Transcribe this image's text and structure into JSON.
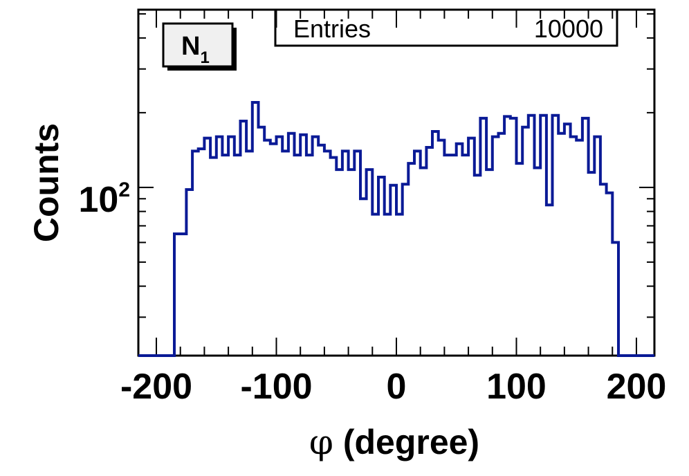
{
  "chart_data": {
    "type": "histogram",
    "label_box": {
      "text": "N",
      "subscript": "1"
    },
    "stats": {
      "entries_label": "Entries",
      "entries_value": "10000"
    },
    "xlabel_symbol": "φ",
    "xlabel_text": " (degree)",
    "ylabel": "Counts",
    "x_ticks": [
      "-200",
      "-100",
      "0",
      "100",
      "200"
    ],
    "x_tick_values": [
      -200,
      -100,
      0,
      100,
      200
    ],
    "y_tick_base": "10",
    "y_tick_exp": "2",
    "y_tick_value": 100,
    "xlim": [
      -215,
      215
    ],
    "ylim": [
      21,
      520
    ],
    "y_scale": "log",
    "line_color": "#0a1a96",
    "bin_edges": [
      -215,
      -205,
      -195,
      -185,
      -175,
      -170,
      -165,
      -160,
      -155,
      -150,
      -145,
      -140,
      -135,
      -130,
      -125,
      -120,
      -115,
      -110,
      -105,
      -100,
      -95,
      -90,
      -85,
      -80,
      -75,
      -70,
      -65,
      -60,
      -55,
      -50,
      -45,
      -40,
      -35,
      -30,
      -25,
      -20,
      -15,
      -10,
      -5,
      0,
      5,
      10,
      15,
      20,
      25,
      30,
      35,
      40,
      45,
      50,
      55,
      60,
      65,
      70,
      75,
      80,
      85,
      90,
      95,
      100,
      105,
      110,
      115,
      120,
      125,
      130,
      135,
      140,
      145,
      150,
      155,
      160,
      165,
      170,
      175,
      180,
      185,
      195,
      205,
      215
    ],
    "counts": [
      21,
      21,
      21,
      65,
      98,
      140,
      143,
      158,
      132,
      160,
      135,
      160,
      135,
      185,
      140,
      220,
      175,
      155,
      150,
      160,
      140,
      165,
      135,
      163,
      135,
      160,
      148,
      140,
      132,
      118,
      140,
      118,
      140,
      90,
      118,
      78,
      110,
      78,
      102,
      78,
      103,
      125,
      140,
      120,
      145,
      168,
      155,
      135,
      135,
      150,
      135,
      158,
      112,
      190,
      118,
      160,
      165,
      193,
      190,
      125,
      175,
      195,
      120,
      195,
      85,
      195,
      165,
      180,
      160,
      155,
      190,
      115,
      160,
      103,
      95,
      60,
      21,
      21,
      21
    ]
  }
}
